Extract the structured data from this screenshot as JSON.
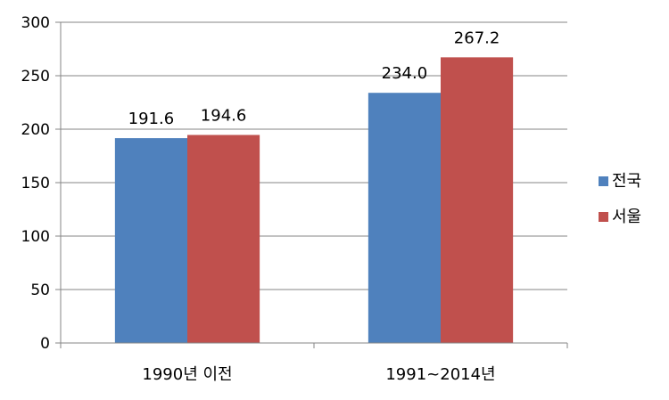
{
  "chart_data": {
    "type": "bar",
    "categories": [
      "1990년 이전",
      "1991~2014년"
    ],
    "series": [
      {
        "name": "전국",
        "values": [
          191.6,
          234.0
        ],
        "labels": [
          "191.6",
          "234.0"
        ],
        "color": "#4F81BD"
      },
      {
        "name": "서울",
        "values": [
          194.6,
          267.2
        ],
        "labels": [
          "194.6",
          "267.2"
        ],
        "color": "#C0504D"
      }
    ],
    "yticks": [
      0,
      50,
      100,
      150,
      200,
      250,
      300
    ],
    "ylim": [
      0,
      300
    ],
    "grid": true,
    "legend": "right",
    "title": "",
    "xlabel": "",
    "ylabel": ""
  }
}
